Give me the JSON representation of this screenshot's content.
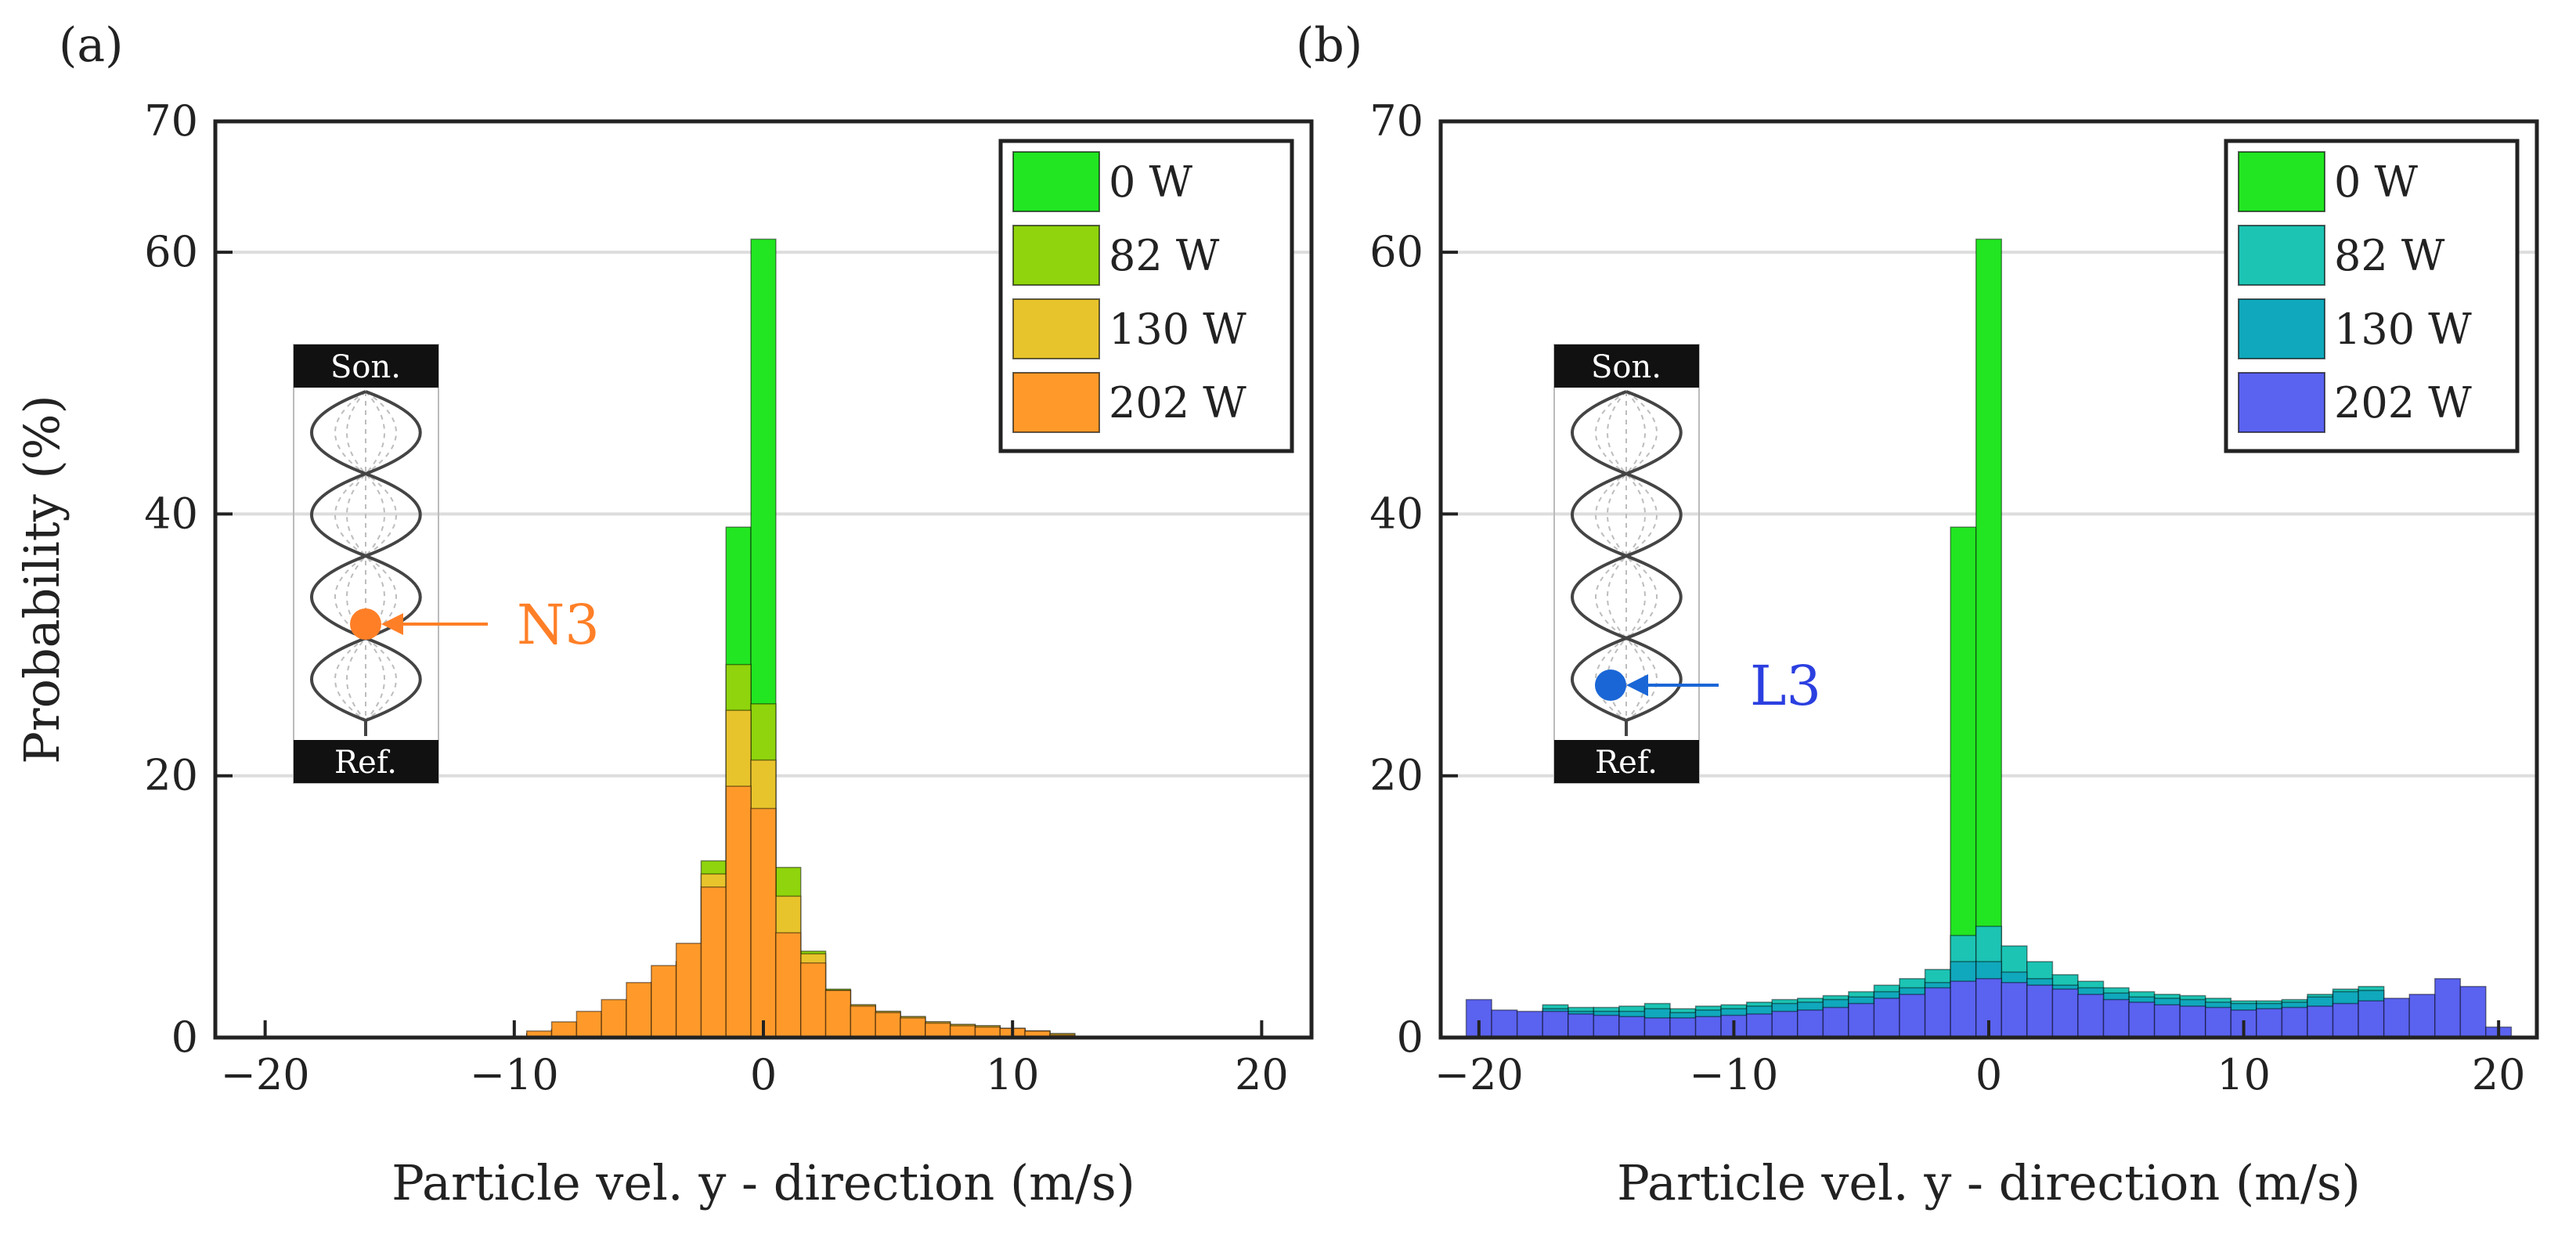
{
  "figure": {
    "panels": [
      "(a)",
      "(b)"
    ]
  },
  "colors": {
    "w0": "#22e622",
    "a_w82": "#8fd40c",
    "a_w130": "#e8c42c",
    "a_w202": "#ff9a2a",
    "b_w82": "#1cc4b4",
    "b_w130": "#10a8bc",
    "b_w202": "#5a62f0",
    "callout_a": "#ff7f27",
    "callout_b": "#1a66d6",
    "callout_b_text": "#2b3fe0"
  },
  "chart_data": [
    {
      "type": "bar",
      "panel": "(a)",
      "xlabel": "Particle vel. y - direction (m/s)",
      "ylabel": "Probability (%)",
      "xlim": [
        -22,
        22
      ],
      "ylim": [
        0,
        70
      ],
      "xticks": [
        "−20",
        "−10",
        "0",
        "10",
        "20"
      ],
      "xtick_values": [
        -20,
        -10,
        0,
        10,
        20
      ],
      "yticks": [
        "0",
        "20",
        "40",
        "60",
        "70"
      ],
      "ytick_values": [
        0,
        20,
        40,
        60,
        70
      ],
      "grid": true,
      "legend_position": "top-right",
      "bin_width": 1,
      "x": [
        -9,
        -8,
        -7,
        -6,
        -5,
        -4,
        -3,
        -2,
        -1,
        0,
        1,
        2,
        3,
        4,
        5,
        6,
        7,
        8,
        9,
        10,
        11,
        12
      ],
      "series": [
        {
          "name": "0 W",
          "values": [
            0,
            0,
            0,
            0,
            0,
            0,
            0,
            0,
            39,
            61,
            0,
            0,
            0,
            0,
            0,
            0,
            0,
            0,
            0,
            0,
            0,
            0
          ]
        },
        {
          "name": "82 W",
          "values": [
            0.3,
            0.6,
            1.0,
            1.8,
            2.6,
            4.2,
            5.8,
            13.5,
            28.5,
            25.5,
            13.0,
            6.6,
            3.7,
            2.5,
            2.0,
            1.6,
            1.2,
            1.0,
            0.9,
            0.7,
            0.5,
            0.3
          ]
        },
        {
          "name": "130 W",
          "values": [
            0.3,
            0.6,
            1.0,
            1.8,
            2.6,
            4.2,
            5.8,
            12.5,
            25.0,
            21.2,
            10.8,
            6.4,
            3.6,
            2.5,
            2.0,
            1.6,
            1.2,
            1.0,
            0.9,
            0.7,
            0.5,
            0.3
          ]
        },
        {
          "name": "202 W",
          "values": [
            0.5,
            1.2,
            2.0,
            2.9,
            4.2,
            5.5,
            7.2,
            11.5,
            19.2,
            17.5,
            8.0,
            5.7,
            3.6,
            2.4,
            1.9,
            1.5,
            1.1,
            0.9,
            0.8,
            0.7,
            0.5,
            0.2
          ]
        }
      ],
      "inset": {
        "top_label": "Son.",
        "bottom_label": "Ref.",
        "marker_label": "N3"
      }
    },
    {
      "type": "bar",
      "panel": "(b)",
      "xlabel": "Particle vel. y - direction (m/s)",
      "ylabel": "",
      "xlim": [
        -21.5,
        21.5
      ],
      "ylim": [
        0,
        70
      ],
      "xticks": [
        "−20",
        "−10",
        "0",
        "10",
        "20"
      ],
      "xtick_values": [
        -20,
        -10,
        0,
        10,
        20
      ],
      "yticks": [
        "0",
        "20",
        "40",
        "60",
        "70"
      ],
      "ytick_values": [
        0,
        20,
        40,
        60,
        70
      ],
      "grid": true,
      "legend_position": "top-right",
      "bin_width": 1,
      "x": [
        -20,
        -19,
        -18,
        -17,
        -16,
        -15,
        -14,
        -13,
        -12,
        -11,
        -10,
        -9,
        -8,
        -7,
        -6,
        -5,
        -4,
        -3,
        -2,
        -1,
        0,
        1,
        2,
        3,
        4,
        5,
        6,
        7,
        8,
        9,
        10,
        11,
        12,
        13,
        14,
        15,
        16,
        17,
        18,
        19,
        20,
        21
      ],
      "series": [
        {
          "name": "0 W",
          "values": [
            0,
            0,
            0,
            0,
            0,
            0,
            0,
            0,
            0,
            0,
            0,
            0,
            0,
            0,
            0,
            0,
            0,
            0,
            0,
            39,
            61,
            0,
            0,
            0,
            0,
            0,
            0,
            0,
            0,
            0,
            0,
            0,
            0,
            0,
            0,
            0,
            0,
            0,
            0,
            0,
            0,
            0
          ]
        },
        {
          "name": "82 W",
          "values": [
            0,
            0,
            0,
            2.5,
            2.3,
            2.3,
            2.4,
            2.6,
            2.2,
            2.4,
            2.5,
            2.7,
            2.9,
            3.0,
            3.2,
            3.5,
            4.0,
            4.5,
            5.2,
            7.8,
            8.5,
            7.0,
            5.8,
            4.8,
            4.3,
            3.8,
            3.5,
            3.3,
            3.2,
            3.0,
            2.8,
            2.8,
            2.9,
            3.3,
            3.7,
            3.9,
            0,
            0,
            0,
            0,
            0,
            0
          ]
        },
        {
          "name": "130 W",
          "values": [
            0,
            0,
            0,
            2.2,
            2.0,
            2.0,
            2.0,
            2.2,
            1.9,
            2.1,
            2.2,
            2.4,
            2.6,
            2.7,
            2.9,
            3.1,
            3.5,
            3.8,
            4.2,
            5.8,
            5.8,
            5.0,
            4.5,
            4.0,
            3.8,
            3.4,
            3.1,
            3.0,
            2.9,
            2.7,
            2.6,
            2.6,
            2.7,
            3.1,
            3.5,
            3.6,
            0,
            0,
            0,
            0,
            0,
            0
          ]
        },
        {
          "name": "202 W",
          "values": [
            2.9,
            2.1,
            2.0,
            2.0,
            1.8,
            1.7,
            1.6,
            1.5,
            1.5,
            1.6,
            1.7,
            1.8,
            2.0,
            2.1,
            2.3,
            2.6,
            3.0,
            3.3,
            3.8,
            4.3,
            4.5,
            4.2,
            4.0,
            3.7,
            3.3,
            2.9,
            2.7,
            2.5,
            2.4,
            2.3,
            2.1,
            2.2,
            2.3,
            2.4,
            2.6,
            2.8,
            3.0,
            3.3,
            4.5,
            3.9,
            0.8,
            0
          ]
        }
      ],
      "inset": {
        "top_label": "Son.",
        "bottom_label": "Ref.",
        "marker_label": "L3"
      }
    }
  ]
}
